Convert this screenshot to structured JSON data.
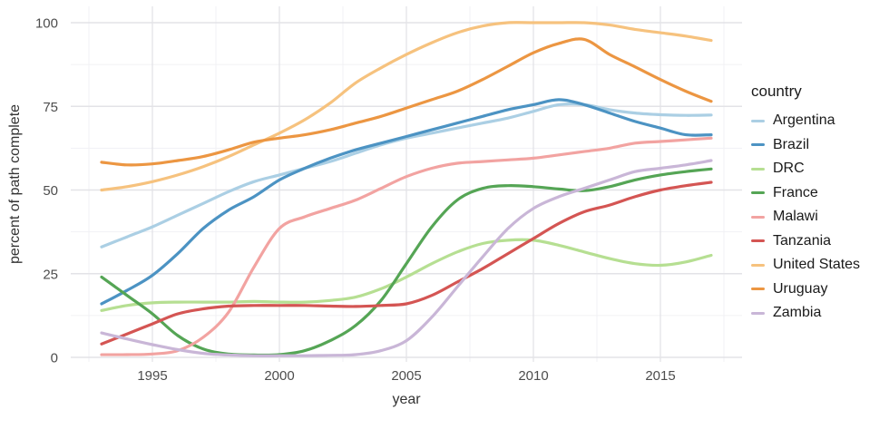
{
  "figure": {
    "background": "#ffffff"
  },
  "colors": {
    "grid_major": "#e3e3e7",
    "grid_minor": "#f1f1f4",
    "tick_label": "#4d4d4d",
    "axis_title": "#333333",
    "legend_text": "#1a1a1a"
  },
  "chart_data": {
    "type": "line",
    "title": "",
    "xlabel": "year",
    "ylabel": "percent of path complete",
    "legend_title": "country",
    "legend_position": "right",
    "grid": "major+minor",
    "xlim": [
      1993,
      2017
    ],
    "ylim": [
      0,
      100
    ],
    "x_ticks": [
      1995,
      2000,
      2005,
      2010,
      2015
    ],
    "x_minor_ticks": [
      1992.5,
      1997.5,
      2002.5,
      2007.5,
      2012.5,
      2017.5
    ],
    "y_ticks": [
      0,
      25,
      50,
      75,
      100
    ],
    "y_minor_ticks": [
      12.5,
      37.5,
      62.5,
      87.5
    ],
    "x": [
      1993,
      1994,
      1995,
      1996,
      1997,
      1998,
      1999,
      2000,
      2001,
      2002,
      2003,
      2004,
      2005,
      2006,
      2007,
      2008,
      2009,
      2010,
      2011,
      2012,
      2013,
      2014,
      2015,
      2016,
      2017
    ],
    "series": [
      {
        "name": "Argentina",
        "color": "#abcfe4",
        "values": [
          33,
          36,
          39,
          42.5,
          46,
          49.5,
          52.5,
          54.5,
          56.5,
          58.5,
          61,
          63.5,
          65.5,
          67,
          68.5,
          70,
          71.5,
          73.5,
          75.5,
          75.5,
          74,
          73,
          72.5,
          72.3,
          72.4
        ]
      },
      {
        "name": "Brazil",
        "color": "#4c93c3",
        "values": [
          16,
          20,
          24.5,
          31,
          38.5,
          44,
          48,
          53,
          56.5,
          59.5,
          62,
          64,
          66,
          68,
          70,
          72,
          74,
          75.5,
          77,
          75.5,
          73,
          70.5,
          68.5,
          66.5,
          66.5
        ]
      },
      {
        "name": "DRC",
        "color": "#b6df92",
        "values": [
          14,
          15.5,
          16.3,
          16.5,
          16.5,
          16.5,
          16.7,
          16.5,
          16.5,
          17,
          18,
          20.5,
          24,
          28,
          31.5,
          34,
          35,
          35,
          33.5,
          31.5,
          29.5,
          28,
          27.5,
          28.5,
          30.5
        ]
      },
      {
        "name": "France",
        "color": "#55a555",
        "values": [
          24,
          18.5,
          13,
          6.5,
          2.5,
          1,
          0.7,
          0.8,
          2,
          5,
          9.5,
          17,
          28,
          39,
          47,
          50.5,
          51.3,
          51,
          50.3,
          49.8,
          51,
          53,
          54.5,
          55.5,
          56.3
        ]
      },
      {
        "name": "Malawi",
        "color": "#f2a3a1",
        "values": [
          0.8,
          0.8,
          1,
          2,
          6,
          13.5,
          27,
          38.5,
          42,
          44.5,
          47,
          50.5,
          54,
          56.5,
          58,
          58.5,
          59,
          59.5,
          60.5,
          61.5,
          62.5,
          64,
          64.5,
          65,
          65.5
        ]
      },
      {
        "name": "Tanzania",
        "color": "#d45553",
        "values": [
          4,
          7,
          10,
          13,
          14.5,
          15.3,
          15.5,
          15.5,
          15.5,
          15.3,
          15.2,
          15.5,
          16,
          18.5,
          22.5,
          26.5,
          31,
          35.5,
          40,
          43.5,
          45.5,
          48,
          50,
          51.3,
          52.3
        ]
      },
      {
        "name": "United States",
        "color": "#f6c27e",
        "values": [
          50,
          51,
          52.5,
          54.5,
          57,
          60,
          63.5,
          67,
          71,
          76,
          82,
          86.5,
          90.5,
          94,
          97,
          99,
          100,
          100,
          100,
          100,
          99.3,
          98,
          97,
          96,
          94.7
        ]
      },
      {
        "name": "Uruguay",
        "color": "#ec9642",
        "values": [
          58.3,
          57.5,
          57.8,
          58.8,
          60,
          62,
          64.3,
          65.5,
          66.5,
          68,
          70,
          72,
          74.5,
          77,
          79.5,
          83,
          87,
          91,
          93.8,
          95,
          90.5,
          86.8,
          83,
          79.5,
          76.5
        ]
      },
      {
        "name": "Zambia",
        "color": "#c9b6d7",
        "values": [
          7.3,
          5.5,
          3.8,
          2.3,
          1.2,
          0.7,
          0.5,
          0.5,
          0.5,
          0.6,
          0.8,
          2,
          5,
          12,
          21,
          30,
          38.5,
          44.5,
          48,
          50.5,
          53,
          55.5,
          56.5,
          57.5,
          58.8
        ]
      }
    ]
  }
}
